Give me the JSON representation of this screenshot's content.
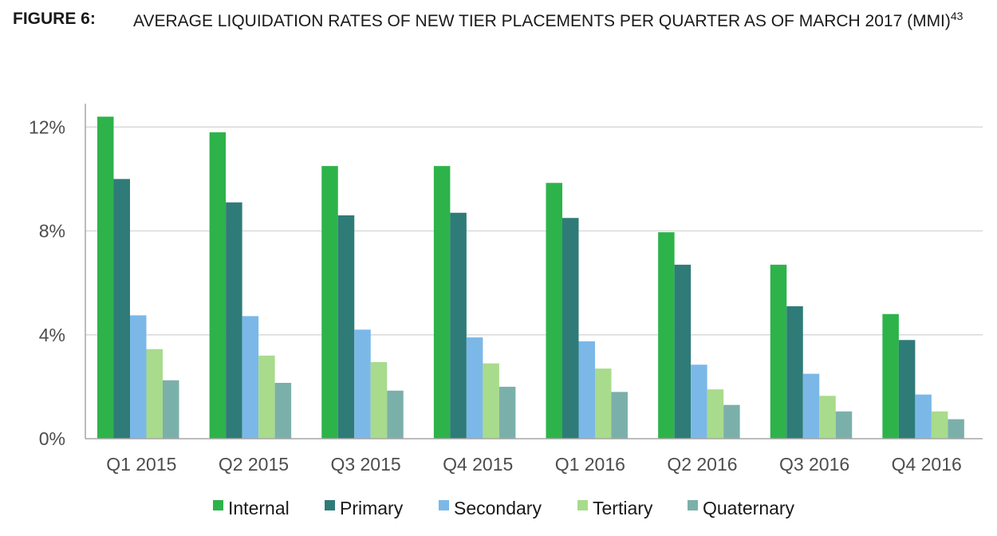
{
  "figure": {
    "label": "FIGURE 6:",
    "title": "AVERAGE LIQUIDATION RATES OF NEW TIER PLACEMENTS PER QUARTER AS OF MARCH 2017 (MMI)",
    "footnote": "43"
  },
  "chart_data": {
    "type": "bar",
    "title": "AVERAGE LIQUIDATION RATES OF NEW TIER PLACEMENTS PER QUARTER AS OF MARCH 2017 (MMI)",
    "xlabel": "",
    "ylabel": "",
    "ylim": [
      0,
      12.9
    ],
    "unit": "%",
    "yticks": [
      0,
      4,
      8,
      12
    ],
    "ytick_labels": [
      "0%",
      "4%",
      "8%",
      "12%"
    ],
    "grid": true,
    "legend_position": "bottom",
    "categories": [
      "Q1 2015",
      "Q2 2015",
      "Q3 2015",
      "Q4 2015",
      "Q1 2016",
      "Q2 2016",
      "Q3 2016",
      "Q4 2016"
    ],
    "series": [
      {
        "name": "Internal",
        "color": "#2db34a",
        "values": [
          12.4,
          11.8,
          10.5,
          10.5,
          9.85,
          7.95,
          6.7,
          4.8
        ]
      },
      {
        "name": "Primary",
        "color": "#2f7b78",
        "values": [
          10.0,
          9.1,
          8.6,
          8.7,
          8.5,
          6.7,
          5.1,
          3.8
        ]
      },
      {
        "name": "Secondary",
        "color": "#7bb8e8",
        "values": [
          4.75,
          4.72,
          4.2,
          3.9,
          3.75,
          2.85,
          2.5,
          1.7
        ]
      },
      {
        "name": "Tertiary",
        "color": "#a8db8c",
        "values": [
          3.45,
          3.2,
          2.95,
          2.9,
          2.7,
          1.9,
          1.65,
          1.05
        ]
      },
      {
        "name": "Quaternary",
        "color": "#7bb0aa",
        "values": [
          2.25,
          2.15,
          1.85,
          2.0,
          1.8,
          1.3,
          1.05,
          0.75
        ]
      }
    ]
  }
}
